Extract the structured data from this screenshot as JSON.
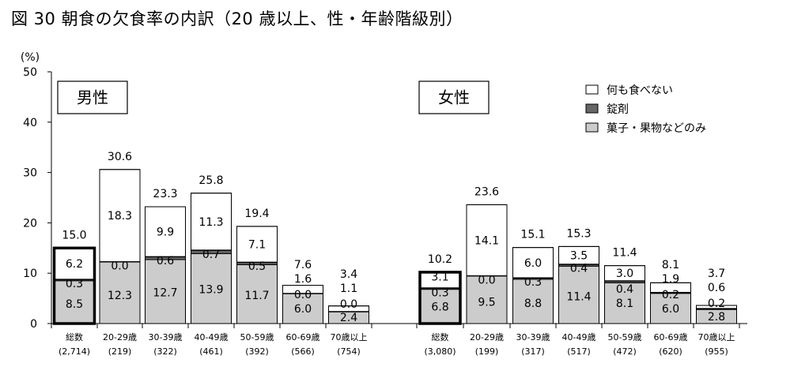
{
  "title": "図 30  朝食の欠食率の内訳（20 歳以上、性・年齢階級別）",
  "chart_data": {
    "type": "bar",
    "stacked": true,
    "ylabel": "(%)",
    "ylim": [
      0,
      50
    ],
    "yticks": [
      "0",
      "10",
      "20",
      "30",
      "40",
      "50"
    ],
    "grid": false,
    "legend": {
      "position": "top-right",
      "items": [
        {
          "name": "何も食べない",
          "color": "#ffffff"
        },
        {
          "name": "錠剤",
          "color": "#666666"
        },
        {
          "name": "菓子・果物などのみ",
          "color": "#cccccc"
        }
      ]
    },
    "panels": [
      {
        "name": "男性",
        "categories": [
          "総数",
          "20-29歳",
          "30-39歳",
          "40-49歳",
          "50-59歳",
          "60-69歳",
          "70歳以上"
        ],
        "counts": [
          "(2,714)",
          "(219)",
          "(322)",
          "(461)",
          "(392)",
          "(566)",
          "(754)"
        ],
        "totals": [
          "15.0",
          "30.6",
          "23.3",
          "25.8",
          "19.4",
          "7.6",
          "3.4"
        ],
        "series": [
          {
            "name": "菓子・果物などのみ",
            "values": [
              8.5,
              12.3,
              12.7,
              13.9,
              11.7,
              6.0,
              2.4
            ],
            "labels": [
              "8.5",
              "12.3",
              "12.7",
              "13.9",
              "11.7",
              "6.0",
              "2.4"
            ]
          },
          {
            "name": "錠剤",
            "values": [
              0.3,
              0.0,
              0.6,
              0.7,
              0.5,
              0.0,
              0.0
            ],
            "labels": [
              "0.3",
              "0.0",
              "0.6",
              "0.7",
              "0.5",
              "0.0",
              "0.0"
            ]
          },
          {
            "name": "何も食べない",
            "values": [
              6.2,
              18.3,
              9.9,
              11.3,
              7.1,
              1.6,
              1.1
            ],
            "labels": [
              "6.2",
              "18.3",
              "9.9",
              "11.3",
              "7.1",
              "1.6",
              "1.1"
            ]
          }
        ]
      },
      {
        "name": "女性",
        "categories": [
          "総数",
          "20-29歳",
          "30-39歳",
          "40-49歳",
          "50-59歳",
          "60-69歳",
          "70歳以上"
        ],
        "counts": [
          "(3,080)",
          "(199)",
          "(317)",
          "(517)",
          "(472)",
          "(620)",
          "(955)"
        ],
        "totals": [
          "10.2",
          "23.6",
          "15.1",
          "15.3",
          "11.4",
          "8.1",
          "3.7"
        ],
        "series": [
          {
            "name": "菓子・果物などのみ",
            "values": [
              6.8,
              9.5,
              8.8,
              11.4,
              8.1,
              6.0,
              2.8
            ],
            "labels": [
              "6.8",
              "9.5",
              "8.8",
              "11.4",
              "8.1",
              "6.0",
              "2.8"
            ]
          },
          {
            "name": "錠剤",
            "values": [
              0.3,
              0.0,
              0.3,
              0.4,
              0.4,
              0.2,
              0.2
            ],
            "labels": [
              "0.3",
              "0.0",
              "0.3",
              "0.4",
              "0.4",
              "0.2",
              "0.2"
            ]
          },
          {
            "name": "何も食べない",
            "values": [
              3.1,
              14.1,
              6.0,
              3.5,
              3.0,
              1.9,
              0.6
            ],
            "labels": [
              "3.1",
              "14.1",
              "6.0",
              "3.5",
              "3.0",
              "1.9",
              "0.6"
            ]
          }
        ]
      }
    ]
  }
}
